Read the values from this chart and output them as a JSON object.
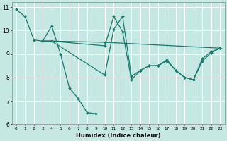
{
  "xlabel": "Humidex (Indice chaleur)",
  "xlim": [
    -0.5,
    23.5
  ],
  "ylim": [
    6,
    11.2
  ],
  "yticks": [
    6,
    7,
    8,
    9,
    10,
    11
  ],
  "xticks": [
    0,
    1,
    2,
    3,
    4,
    5,
    6,
    7,
    8,
    9,
    10,
    11,
    12,
    13,
    14,
    15,
    16,
    17,
    18,
    19,
    20,
    21,
    22,
    23
  ],
  "bg_color": "#c5e8e2",
  "line_color": "#1a7a6e",
  "grid_color": "#ffffff",
  "lines": [
    {
      "x": [
        0,
        1,
        2,
        3,
        4,
        5,
        6,
        7,
        8,
        9
      ],
      "y": [
        10.9,
        10.6,
        9.6,
        9.55,
        10.2,
        9.0,
        7.55,
        7.1,
        6.5,
        6.45
      ]
    },
    {
      "x": [
        3,
        4,
        10,
        23
      ],
      "y": [
        9.55,
        9.55,
        9.5,
        9.25
      ]
    },
    {
      "x": [
        3,
        4,
        10,
        11,
        12,
        13,
        14,
        15,
        16,
        17,
        18,
        19,
        20,
        21,
        22,
        23
      ],
      "y": [
        9.55,
        9.55,
        9.35,
        10.6,
        9.95,
        7.9,
        8.3,
        8.5,
        8.5,
        8.7,
        8.3,
        8.0,
        7.9,
        8.8,
        9.1,
        9.25
      ]
    },
    {
      "x": [
        3,
        4,
        10,
        11,
        12,
        13,
        14,
        15,
        16,
        17,
        18,
        19,
        20,
        21,
        22,
        23
      ],
      "y": [
        9.55,
        9.55,
        8.1,
        10.05,
        10.6,
        8.05,
        8.3,
        8.5,
        8.5,
        8.75,
        8.3,
        8.0,
        7.9,
        8.7,
        9.05,
        9.25
      ]
    }
  ]
}
